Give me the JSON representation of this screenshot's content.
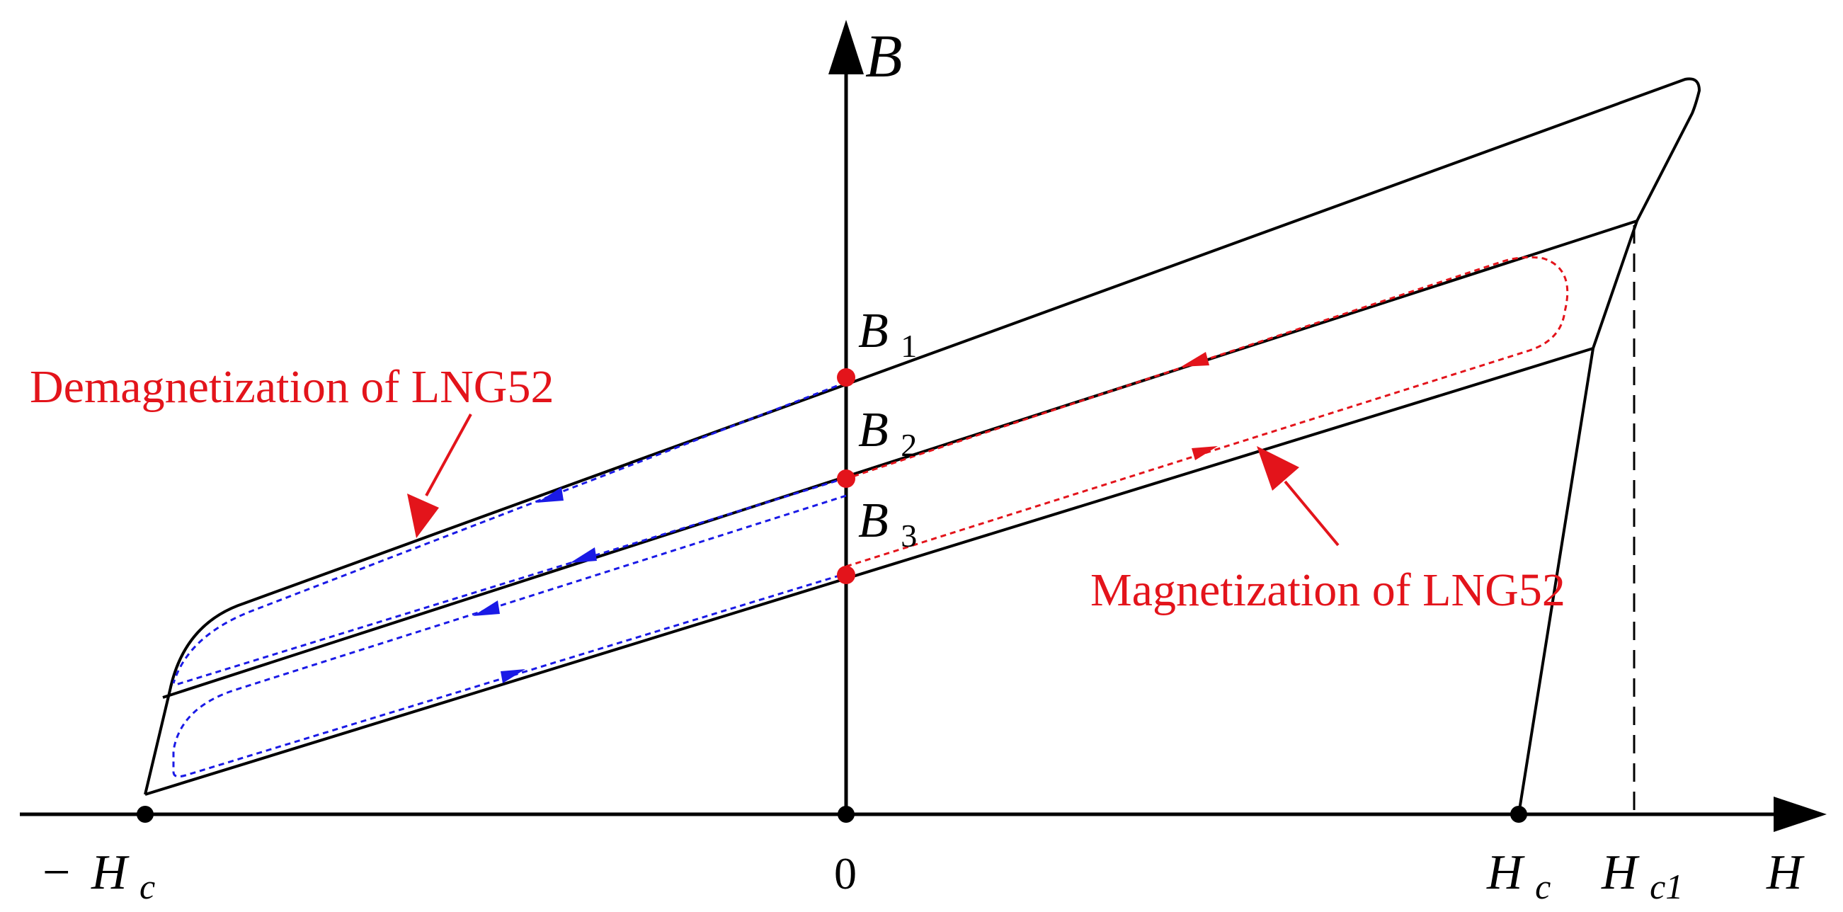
{
  "axes": {
    "y_label": "B",
    "x_label": "H",
    "origin_label": "0"
  },
  "points": {
    "neg_hc": {
      "sign": "−",
      "main": "H",
      "sub": "c"
    },
    "hc": {
      "main": "H",
      "sub": "c"
    },
    "hc1": {
      "main": "H",
      "sub": "c1"
    },
    "b1": {
      "main": "B",
      "sub": "1"
    },
    "b2": {
      "main": "B",
      "sub": "2"
    },
    "b3": {
      "main": "B",
      "sub": "3"
    }
  },
  "annotations": {
    "demagnetization": "Demagnetization of LNG52",
    "magnetization": "Magnetization of LNG52"
  },
  "colors": {
    "axis": "#000000",
    "curve": "#000000",
    "marker": "#e3141b",
    "annotation": "#e3141b",
    "demag_path": "#1a1ae6",
    "mag_path": "#e3141b"
  }
}
